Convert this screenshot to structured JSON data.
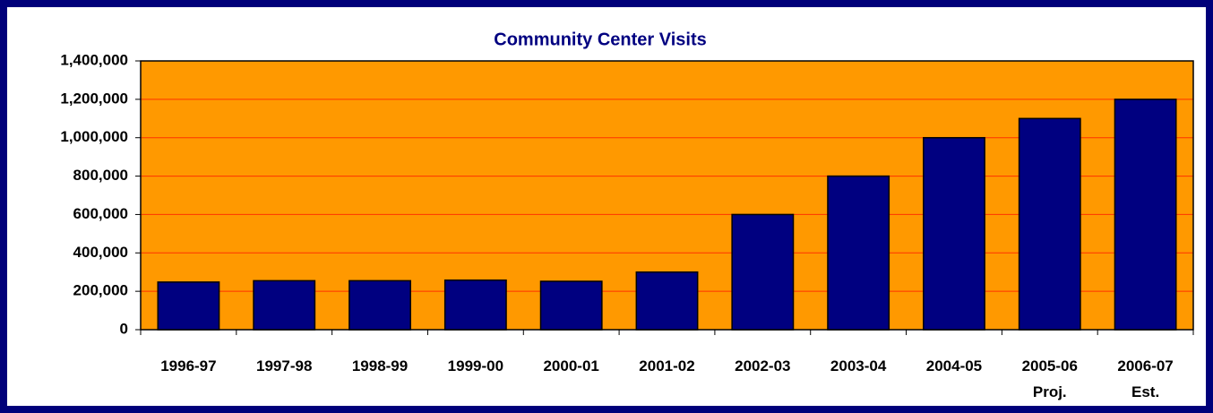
{
  "chart_data": {
    "type": "bar",
    "title": "Community Center Visits",
    "categories": [
      "1996-97",
      "1997-98",
      "1998-99",
      "1999-00",
      "2000-01",
      "2001-02",
      "2002-03",
      "2003-04",
      "2004-05",
      "2005-06\nProj.",
      "2006-07\nEst."
    ],
    "values": [
      248000,
      255000,
      255000,
      258000,
      252000,
      300000,
      600000,
      800000,
      1000000,
      1100000,
      1200000
    ],
    "color": "#000080",
    "plot_background": "#FF9900",
    "grid_color": "#FF3300",
    "ylim": [
      0,
      1400000
    ],
    "yticks": [
      0,
      {
        "value": 200000,
        "label": "200,000"
      },
      {
        "value": 400000,
        "label": "400,000"
      },
      {
        "value": 600000,
        "label": "600,000"
      },
      {
        "value": 800000,
        "label": "800,000"
      },
      {
        "value": 1000000,
        "label": "1,000,000"
      },
      {
        "value": 1200000,
        "label": "1,200,000"
      },
      {
        "value": 1400000,
        "label": "1,400,000"
      }
    ],
    "grid": true
  }
}
